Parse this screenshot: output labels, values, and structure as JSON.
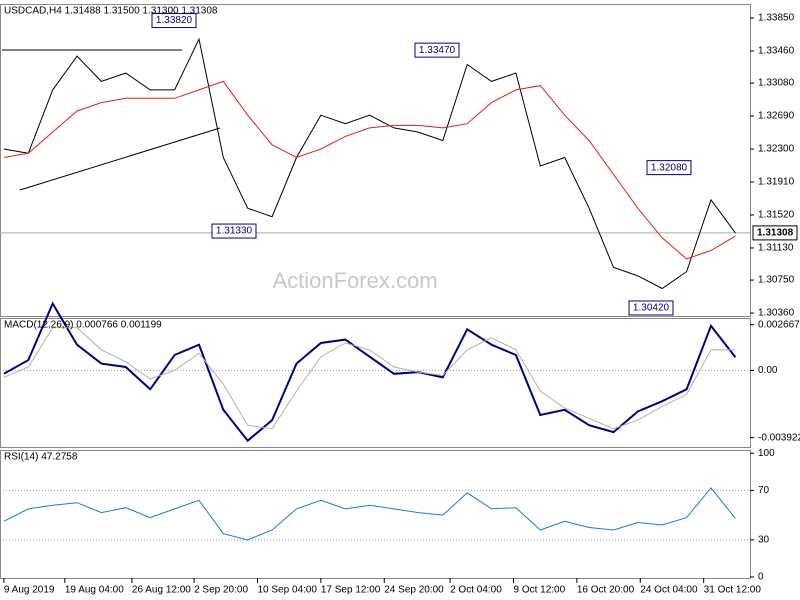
{
  "chart_data": [
    {
      "type": "line",
      "title": "USDCAD,H4  1.31488 1.31500 1.31300 1.31308",
      "watermark": "ActionForex.com",
      "x": [
        0,
        1,
        2,
        3,
        4,
        5,
        6,
        7,
        8,
        9,
        10,
        11,
        12,
        13,
        14,
        15,
        16,
        17,
        18,
        19,
        20,
        21,
        22,
        23,
        24,
        25,
        26,
        27,
        28,
        29,
        30
      ],
      "xlim": [
        -0.16,
        30.6
      ],
      "ylim": [
        1.30325,
        1.34004
      ],
      "yticks": [
        {
          "value": 1.3385,
          "label": "1.33850"
        },
        {
          "value": 1.3346,
          "label": "1.33460"
        },
        {
          "value": 1.3308,
          "label": "1.33080"
        },
        {
          "value": 1.3269,
          "label": "1.32690"
        },
        {
          "value": 1.323,
          "label": "1.32300"
        },
        {
          "value": 1.3191,
          "label": "1.31910"
        },
        {
          "value": 1.3152,
          "label": "1.31520"
        },
        {
          "value": 1.3113,
          "label": "1.31130"
        },
        {
          "value": 1.3075,
          "label": "1.30750"
        },
        {
          "value": 1.3036,
          "label": "1.30360"
        }
      ],
      "last_price": 1.31308,
      "annotations": [
        {
          "value": 1.3382,
          "label": "1.33820"
        },
        {
          "value": 1.3347,
          "label": "1.33470"
        },
        {
          "value": 1.3133,
          "label": "1.31330"
        },
        {
          "value": 1.3208,
          "label": "1.32080"
        },
        {
          "value": 1.3042,
          "label": "1.30420"
        }
      ],
      "series": [
        {
          "color": "#000000",
          "width": 1,
          "values": [
            1.323,
            1.3225,
            1.33,
            1.334,
            1.331,
            1.332,
            1.33,
            1.33,
            1.336,
            1.322,
            1.316,
            1.315,
            1.322,
            1.327,
            1.326,
            1.327,
            1.3255,
            1.325,
            1.324,
            1.333,
            1.331,
            1.332,
            1.321,
            1.322,
            1.316,
            1.309,
            1.308,
            1.3065,
            1.3085,
            1.317,
            1.31308
          ]
        },
        {
          "color": "#e02020",
          "width": 1,
          "values": [
            1.322,
            1.3225,
            1.325,
            1.3275,
            1.3285,
            1.329,
            1.329,
            1.329,
            1.33,
            1.331,
            1.327,
            1.3235,
            1.322,
            1.323,
            1.3245,
            1.3255,
            1.3258,
            1.3258,
            1.3255,
            1.326,
            1.3285,
            1.33,
            1.3305,
            1.327,
            1.324,
            1.32,
            1.316,
            1.3125,
            1.31,
            1.311,
            1.3127
          ]
        }
      ]
    },
    {
      "type": "line",
      "title": "MACD(12,26,9) 0.000766 0.001199",
      "x": [
        0,
        1,
        2,
        3,
        4,
        5,
        6,
        7,
        8,
        9,
        10,
        11,
        12,
        13,
        14,
        15,
        16,
        17,
        18,
        19,
        20,
        21,
        22,
        23,
        24,
        25,
        26,
        27,
        28,
        29,
        30
      ],
      "xlim": [
        -0.16,
        30.6
      ],
      "ylim": [
        -0.00447,
        0.003
      ],
      "yticks": [
        0.002667,
        {
          "value": 0,
          "label": "0.00"
        },
        -0.003922
      ],
      "levels": [
        0
      ],
      "series": [
        {
          "color": "#00007f",
          "width": 2,
          "values": [
            -0.0002,
            0.0006,
            0.0039,
            0.0015,
            0.0004,
            0.0002,
            -0.0011,
            0.0009,
            0.0015,
            -0.0023,
            -0.0041,
            -0.0029,
            0.0004,
            0.0016,
            0.0018,
            0.0008,
            -0.0002,
            -0.0001,
            -0.0004,
            0.0024,
            0.0015,
            0.0009,
            -0.0026,
            -0.0023,
            -0.0032,
            -0.0036,
            -0.0024,
            -0.0018,
            -0.0011,
            0.0026,
            0.000766
          ]
        },
        {
          "color": "#b0b0b0",
          "width": 1,
          "values": [
            -0.0004,
            0.0002,
            0.0025,
            0.0025,
            0.0012,
            0.0005,
            -0.0005,
            0.0,
            0.001,
            -0.0008,
            -0.0032,
            -0.0034,
            -0.0012,
            0.0008,
            0.0016,
            0.0012,
            0.0002,
            -0.0001,
            -0.0003,
            0.0012,
            0.0019,
            0.0012,
            -0.0012,
            -0.0022,
            -0.0028,
            -0.0034,
            -0.0029,
            -0.0021,
            -0.0014,
            0.0012,
            0.001199
          ]
        }
      ]
    },
    {
      "type": "line",
      "title": "RSI(14) 47.2758",
      "x": [
        0,
        1,
        2,
        3,
        4,
        5,
        6,
        7,
        8,
        9,
        10,
        11,
        12,
        13,
        14,
        15,
        16,
        17,
        18,
        19,
        20,
        21,
        22,
        23,
        24,
        25,
        26,
        27,
        28,
        29,
        30
      ],
      "xlim": [
        -0.16,
        30.6
      ],
      "ylim": [
        -0.8,
        101.8
      ],
      "yticks": [
        100,
        70,
        30,
        0
      ],
      "levels": [
        70,
        30
      ],
      "xticks": [
        {
          "value": 0,
          "label": "9 Aug 2019"
        },
        {
          "value": 2.5,
          "label": "19 Aug 04:00"
        },
        {
          "value": 5.25,
          "label": "26 Aug 12:00"
        },
        {
          "value": 7.8,
          "label": "2 Sep 20:00"
        },
        {
          "value": 10.4,
          "label": "10 Sep 04:00"
        },
        {
          "value": 13,
          "label": "17 Sep 12:00"
        },
        {
          "value": 15.6,
          "label": "24 Sep 20:00"
        },
        {
          "value": 18.3,
          "label": "2 Oct 04:00"
        },
        {
          "value": 20.9,
          "label": "9 Oct 12:00"
        },
        {
          "value": 23.5,
          "label": "16 Oct 20:00"
        },
        {
          "value": 26.1,
          "label": "24 Oct 04:00"
        },
        {
          "value": 28.7,
          "label": "31 Oct 12:00"
        }
      ],
      "series": [
        {
          "color": "#1e78d8",
          "width": 1,
          "values": [
            45,
            55,
            58,
            60,
            52,
            56,
            48,
            55,
            62,
            35,
            30,
            38,
            55,
            62,
            55,
            58,
            55,
            52,
            50,
            68,
            55,
            56,
            38,
            45,
            40,
            38,
            44,
            42,
            48,
            72,
            47.2758
          ]
        }
      ]
    }
  ]
}
